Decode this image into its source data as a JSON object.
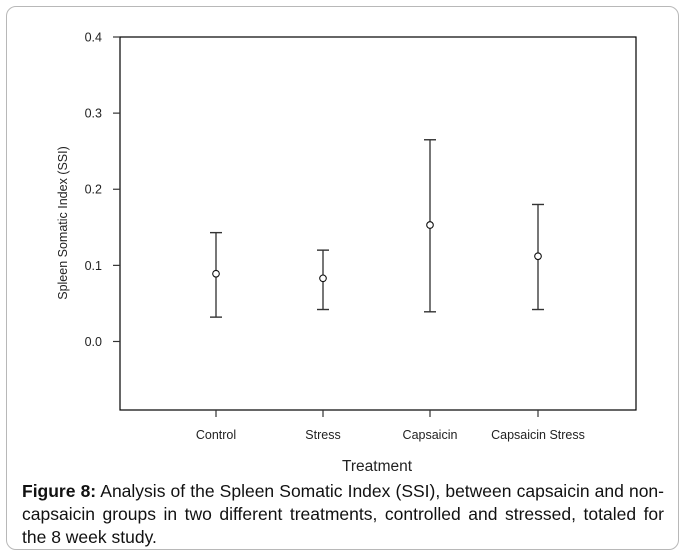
{
  "chart_data": {
    "type": "scatter",
    "subtype": "mean-with-error-bars",
    "title": "",
    "xlabel": "Treatment",
    "ylabel": "Spleen Somatic Index (SSI)",
    "categories": [
      "Control",
      "Stress",
      "Capsaicin",
      "Capsaicin Stress"
    ],
    "series": [
      {
        "name": "SSI",
        "mean": [
          0.089,
          0.083,
          0.153,
          0.112
        ],
        "upper": [
          0.143,
          0.12,
          0.265,
          0.18
        ],
        "lower": [
          0.032,
          0.042,
          0.039,
          0.042
        ]
      }
    ],
    "ylim": [
      -0.09,
      0.4
    ],
    "yticks": [
      0.0,
      0.1,
      0.2,
      0.3,
      0.4
    ],
    "ytick_labels": [
      "0.0",
      "0.1",
      "0.2",
      "0.3",
      "0.4"
    ],
    "grid": false,
    "legend": "none"
  },
  "caption": {
    "label": "Figure 8:",
    "text": " Analysis of the Spleen Somatic Index (SSI), between capsaicin and non-capsaicin groups in two different treatments, controlled and stressed, totaled for the 8 week study."
  }
}
